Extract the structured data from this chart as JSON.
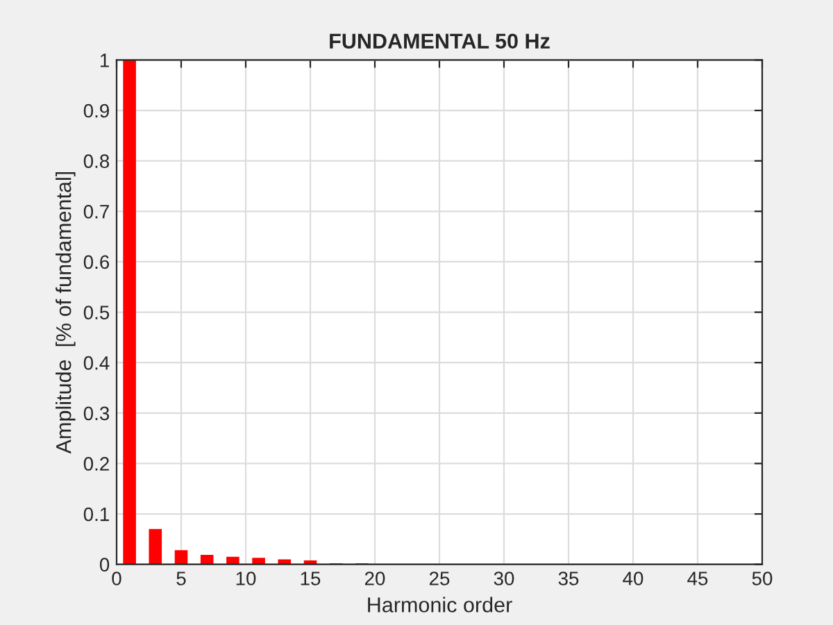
{
  "chart_data": {
    "type": "bar",
    "title": "FUNDAMENTAL 50 Hz",
    "xlabel": "Harmonic order",
    "ylabel": "Amplitude  [% of fundamental]",
    "x": [
      1,
      3,
      5,
      7,
      9,
      11,
      13,
      15,
      17,
      19
    ],
    "values": [
      1.0,
      0.07,
      0.028,
      0.019,
      0.015,
      0.013,
      0.01,
      0.008,
      0.002,
      0.002
    ],
    "color": "#ff0000",
    "xlim": [
      0,
      50
    ],
    "xticks": [
      0,
      5,
      10,
      15,
      20,
      25,
      30,
      35,
      40,
      45,
      50
    ],
    "ylim": [
      0,
      1
    ],
    "yticks": [
      0,
      0.1,
      0.2,
      0.3,
      0.4,
      0.5,
      0.6,
      0.7,
      0.8,
      0.9,
      1
    ],
    "grid": true
  }
}
